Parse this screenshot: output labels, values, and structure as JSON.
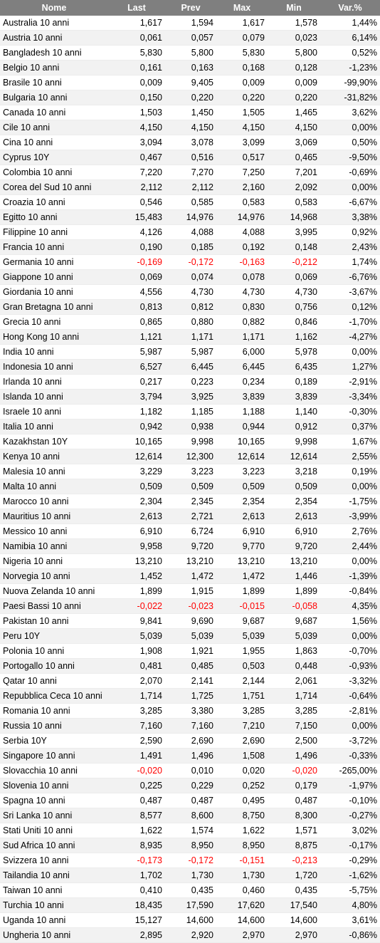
{
  "headers": [
    "Nome",
    "Last",
    "Prev",
    "Max",
    "Min",
    "Var.%"
  ],
  "rows": [
    [
      "Australia 10 anni",
      "1,617",
      "1,594",
      "1,617",
      "1,578",
      "1,44%"
    ],
    [
      "Austria 10 anni",
      "0,061",
      "0,057",
      "0,079",
      "0,023",
      "6,14%"
    ],
    [
      "Bangladesh 10 anni",
      "5,830",
      "5,800",
      "5,830",
      "5,800",
      "0,52%"
    ],
    [
      "Belgio 10 anni",
      "0,161",
      "0,163",
      "0,168",
      "0,128",
      "-1,23%"
    ],
    [
      "Brasile 10 anni",
      "0,009",
      "9,405",
      "0,009",
      "0,009",
      "-99,90%"
    ],
    [
      "Bulgaria 10 anni",
      "0,150",
      "0,220",
      "0,220",
      "0,220",
      "-31,82%"
    ],
    [
      "Canada 10 anni",
      "1,503",
      "1,450",
      "1,505",
      "1,465",
      "3,62%"
    ],
    [
      "Cile 10 anni",
      "4,150",
      "4,150",
      "4,150",
      "4,150",
      "0,00%"
    ],
    [
      "Cina 10 anni",
      "3,094",
      "3,078",
      "3,099",
      "3,069",
      "0,50%"
    ],
    [
      "Cyprus 10Y",
      "0,467",
      "0,516",
      "0,517",
      "0,465",
      "-9,50%"
    ],
    [
      "Colombia 10 anni",
      "7,220",
      "7,270",
      "7,250",
      "7,201",
      "-0,69%"
    ],
    [
      "Corea del Sud 10 anni",
      "2,112",
      "2,112",
      "2,160",
      "2,092",
      "0,00%"
    ],
    [
      "Croazia 10 anni",
      "0,546",
      "0,585",
      "0,583",
      "0,583",
      "-6,67%"
    ],
    [
      "Egitto 10 anni",
      "15,483",
      "14,976",
      "14,976",
      "14,968",
      "3,38%"
    ],
    [
      "Filippine 10 anni",
      "4,126",
      "4,088",
      "4,088",
      "3,995",
      "0,92%"
    ],
    [
      "Francia 10 anni",
      "0,190",
      "0,185",
      "0,192",
      "0,148",
      "2,43%"
    ],
    [
      "Germania 10 anni",
      "-0,169",
      "-0,172",
      "-0,163",
      "-0,212",
      "1,74%"
    ],
    [
      "Giappone 10 anni",
      "0,069",
      "0,074",
      "0,078",
      "0,069",
      "-6,76%"
    ],
    [
      "Giordania 10 anni",
      "4,556",
      "4,730",
      "4,730",
      "4,730",
      "-3,67%"
    ],
    [
      "Gran Bretagna 10 anni",
      "0,813",
      "0,812",
      "0,830",
      "0,756",
      "0,12%"
    ],
    [
      "Grecia 10 anni",
      "0,865",
      "0,880",
      "0,882",
      "0,846",
      "-1,70%"
    ],
    [
      "Hong Kong 10 anni",
      "1,121",
      "1,171",
      "1,171",
      "1,162",
      "-4,27%"
    ],
    [
      "India 10 anni",
      "5,987",
      "5,987",
      "6,000",
      "5,978",
      "0,00%"
    ],
    [
      "Indonesia 10 anni",
      "6,527",
      "6,445",
      "6,445",
      "6,435",
      "1,27%"
    ],
    [
      "Irlanda 10 anni",
      "0,217",
      "0,223",
      "0,234",
      "0,189",
      "-2,91%"
    ],
    [
      "Islanda 10 anni",
      "3,794",
      "3,925",
      "3,839",
      "3,839",
      "-3,34%"
    ],
    [
      "Israele 10 anni",
      "1,182",
      "1,185",
      "1,188",
      "1,140",
      "-0,30%"
    ],
    [
      "Italia 10 anni",
      "0,942",
      "0,938",
      "0,944",
      "0,912",
      "0,37%"
    ],
    [
      "Kazakhstan 10Y",
      "10,165",
      "9,998",
      "10,165",
      "9,998",
      "1,67%"
    ],
    [
      "Kenya 10 anni",
      "12,614",
      "12,300",
      "12,614",
      "12,614",
      "2,55%"
    ],
    [
      "Malesia 10 anni",
      "3,229",
      "3,223",
      "3,223",
      "3,218",
      "0,19%"
    ],
    [
      "Malta 10 anni",
      "0,509",
      "0,509",
      "0,509",
      "0,509",
      "0,00%"
    ],
    [
      "Marocco 10 anni",
      "2,304",
      "2,345",
      "2,354",
      "2,354",
      "-1,75%"
    ],
    [
      "Mauritius 10 anni",
      "2,613",
      "2,721",
      "2,613",
      "2,613",
      "-3,99%"
    ],
    [
      "Messico 10 anni",
      "6,910",
      "6,724",
      "6,910",
      "6,910",
      "2,76%"
    ],
    [
      "Namibia 10 anni",
      "9,958",
      "9,720",
      "9,770",
      "9,720",
      "2,44%"
    ],
    [
      "Nigeria 10 anni",
      "13,210",
      "13,210",
      "13,210",
      "13,210",
      "0,00%"
    ],
    [
      "Norvegia 10 anni",
      "1,452",
      "1,472",
      "1,472",
      "1,446",
      "-1,39%"
    ],
    [
      "Nuova Zelanda 10 anni",
      "1,899",
      "1,915",
      "1,899",
      "1,899",
      "-0,84%"
    ],
    [
      "Paesi Bassi 10 anni",
      "-0,022",
      "-0,023",
      "-0,015",
      "-0,058",
      "4,35%"
    ],
    [
      "Pakistan 10 anni",
      "9,841",
      "9,690",
      "9,687",
      "9,687",
      "1,56%"
    ],
    [
      "Peru 10Y",
      "5,039",
      "5,039",
      "5,039",
      "5,039",
      "0,00%"
    ],
    [
      "Polonia 10 anni",
      "1,908",
      "1,921",
      "1,955",
      "1,863",
      "-0,70%"
    ],
    [
      "Portogallo 10 anni",
      "0,481",
      "0,485",
      "0,503",
      "0,448",
      "-0,93%"
    ],
    [
      "Qatar 10 anni",
      "2,070",
      "2,141",
      "2,144",
      "2,061",
      "-3,32%"
    ],
    [
      "Repubblica Ceca 10 anni",
      "1,714",
      "1,725",
      "1,751",
      "1,714",
      "-0,64%"
    ],
    [
      "Romania 10 anni",
      "3,285",
      "3,380",
      "3,285",
      "3,285",
      "-2,81%"
    ],
    [
      "Russia 10 anni",
      "7,160",
      "7,160",
      "7,210",
      "7,150",
      "0,00%"
    ],
    [
      "Serbia 10Y",
      "2,590",
      "2,690",
      "2,690",
      "2,500",
      "-3,72%"
    ],
    [
      "Singapore 10 anni",
      "1,491",
      "1,496",
      "1,508",
      "1,496",
      "-0,33%"
    ],
    [
      "Slovacchia 10 anni",
      "-0,020",
      "0,010",
      "0,020",
      "-0,020",
      "-265,00%"
    ],
    [
      "Slovenia 10 anni",
      "0,225",
      "0,229",
      "0,252",
      "0,179",
      "-1,97%"
    ],
    [
      "Spagna 10 anni",
      "0,487",
      "0,487",
      "0,495",
      "0,487",
      "-0,10%"
    ],
    [
      "Sri Lanka 10 anni",
      "8,577",
      "8,600",
      "8,750",
      "8,300",
      "-0,27%"
    ],
    [
      "Stati Uniti 10 anni",
      "1,622",
      "1,574",
      "1,622",
      "1,571",
      "3,02%"
    ],
    [
      "Sud Africa 10 anni",
      "8,935",
      "8,950",
      "8,950",
      "8,875",
      "-0,17%"
    ],
    [
      "Svizzera 10 anni",
      "-0,173",
      "-0,172",
      "-0,151",
      "-0,213",
      "-0,29%"
    ],
    [
      "Tailandia 10 anni",
      "1,702",
      "1,730",
      "1,730",
      "1,720",
      "-1,62%"
    ],
    [
      "Taiwan 10 anni",
      "0,410",
      "0,435",
      "0,460",
      "0,435",
      "-5,75%"
    ],
    [
      "Turchia 10 anni",
      "18,435",
      "17,590",
      "17,620",
      "17,540",
      "4,80%"
    ],
    [
      "Uganda 10 anni",
      "15,127",
      "14,600",
      "14,600",
      "14,600",
      "3,61%"
    ],
    [
      "Ungheria 10 anni",
      "2,895",
      "2,920",
      "2,970",
      "2,970",
      "-0,86%"
    ]
  ],
  "colors": {
    "header_bg": "#7f7f7f",
    "header_text": "#ffffff",
    "stripe": "#f2f2f2",
    "negative_value": "#ff0000"
  }
}
